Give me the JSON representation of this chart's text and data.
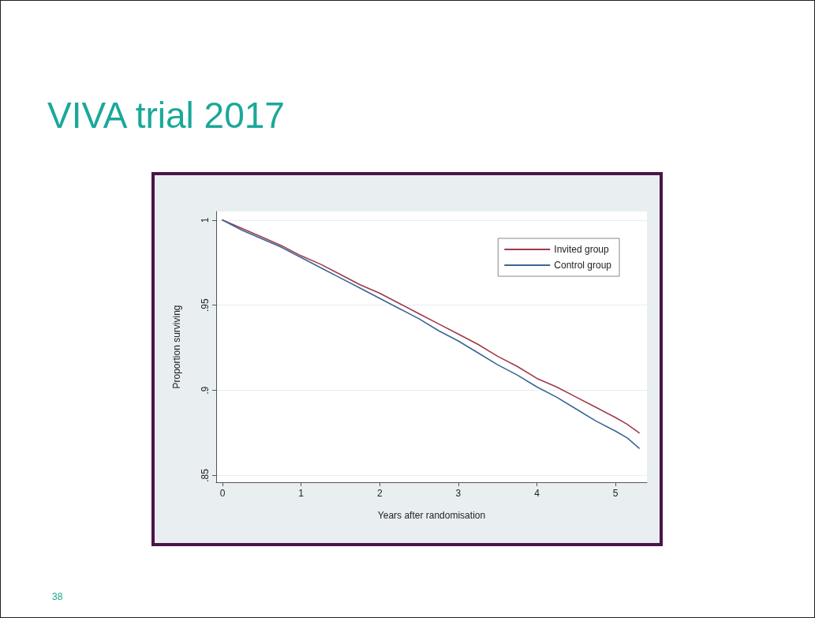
{
  "chart_data": {
    "type": "line",
    "title": "VIVA trial 2017",
    "xlabel": "Years after randomisation",
    "ylabel": "Proportion surviving",
    "x": [
      0,
      0.25,
      0.5,
      0.75,
      1,
      1.25,
      1.5,
      1.75,
      2,
      2.25,
      2.5,
      2.75,
      3,
      3.25,
      3.5,
      3.75,
      4,
      4.25,
      4.5,
      4.75,
      5,
      5.15,
      5.3
    ],
    "series": [
      {
        "name": "Invited group",
        "color": "#a03a48",
        "values": [
          1,
          0.995,
          0.99,
          0.985,
          0.979,
          0.974,
          0.968,
          0.962,
          0.957,
          0.951,
          0.945,
          0.939,
          0.933,
          0.927,
          0.92,
          0.914,
          0.907,
          0.902,
          0.896,
          0.89,
          0.884,
          0.88,
          0.875
        ]
      },
      {
        "name": "Control group",
        "color": "#3a6596",
        "values": [
          1,
          0.994,
          0.989,
          0.984,
          0.978,
          0.972,
          0.966,
          0.96,
          0.954,
          0.948,
          0.942,
          0.935,
          0.929,
          0.922,
          0.915,
          0.909,
          0.902,
          0.896,
          0.889,
          0.882,
          0.876,
          0.872,
          0.866
        ]
      }
    ],
    "xlim": [
      -0.08,
      5.4
    ],
    "xticks": [
      0,
      1,
      2,
      3,
      4,
      5
    ],
    "ylim": [
      0.846,
      1.005
    ],
    "yticks": [
      {
        "value": 0.85,
        "label": ".85"
      },
      {
        "value": 0.9,
        "label": ".9"
      },
      {
        "value": 0.95,
        "label": ".95"
      },
      1
    ],
    "grid": "y",
    "legend": "top right",
    "marker": "none",
    "line_style": "solid",
    "annotations": [
      "38"
    ]
  }
}
